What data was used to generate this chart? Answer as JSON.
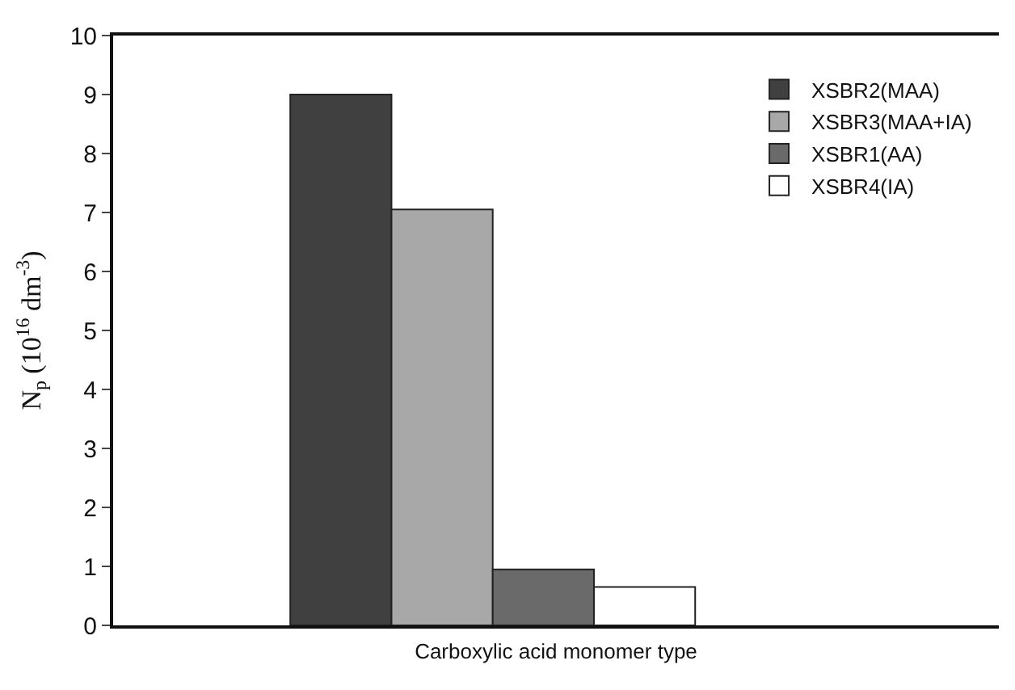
{
  "chart_data": {
    "type": "bar",
    "xlabel": "Carboxylic acid monomer type",
    "ylabel": "N$_{p}$ (10$^{16}$ dm$^{-3}$)",
    "categories": [
      null
    ],
    "series": [
      {
        "name": "XSBR2(MAA)",
        "color": "#404040",
        "values": [
          9.0
        ]
      },
      {
        "name": "XSBR3(MAA+IA)",
        "color": "#a8a8a8",
        "values": [
          7.05
        ]
      },
      {
        "name": "XSBR1(AA)",
        "color": "#6a6a6a",
        "values": [
          0.95
        ]
      },
      {
        "name": "XSBR4(IA)",
        "color": "#ffffff",
        "values": [
          0.65
        ]
      }
    ],
    "ylim": [
      0,
      10
    ],
    "yticks": [
      0,
      1,
      2,
      3,
      4,
      5,
      6,
      7,
      8,
      9,
      10
    ],
    "grid": false,
    "legend": "top right"
  }
}
